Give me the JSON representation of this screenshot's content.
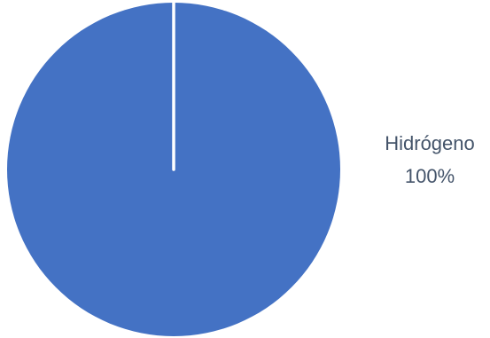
{
  "chart_data": {
    "type": "pie",
    "categories": [
      "Hidrógeno"
    ],
    "values": [
      100
    ],
    "labels": [
      "100%"
    ],
    "colors": [
      "#4472C4"
    ],
    "label_color": "#44546A",
    "separator_color": "#FFFFFF",
    "title": "",
    "legend": "none"
  }
}
